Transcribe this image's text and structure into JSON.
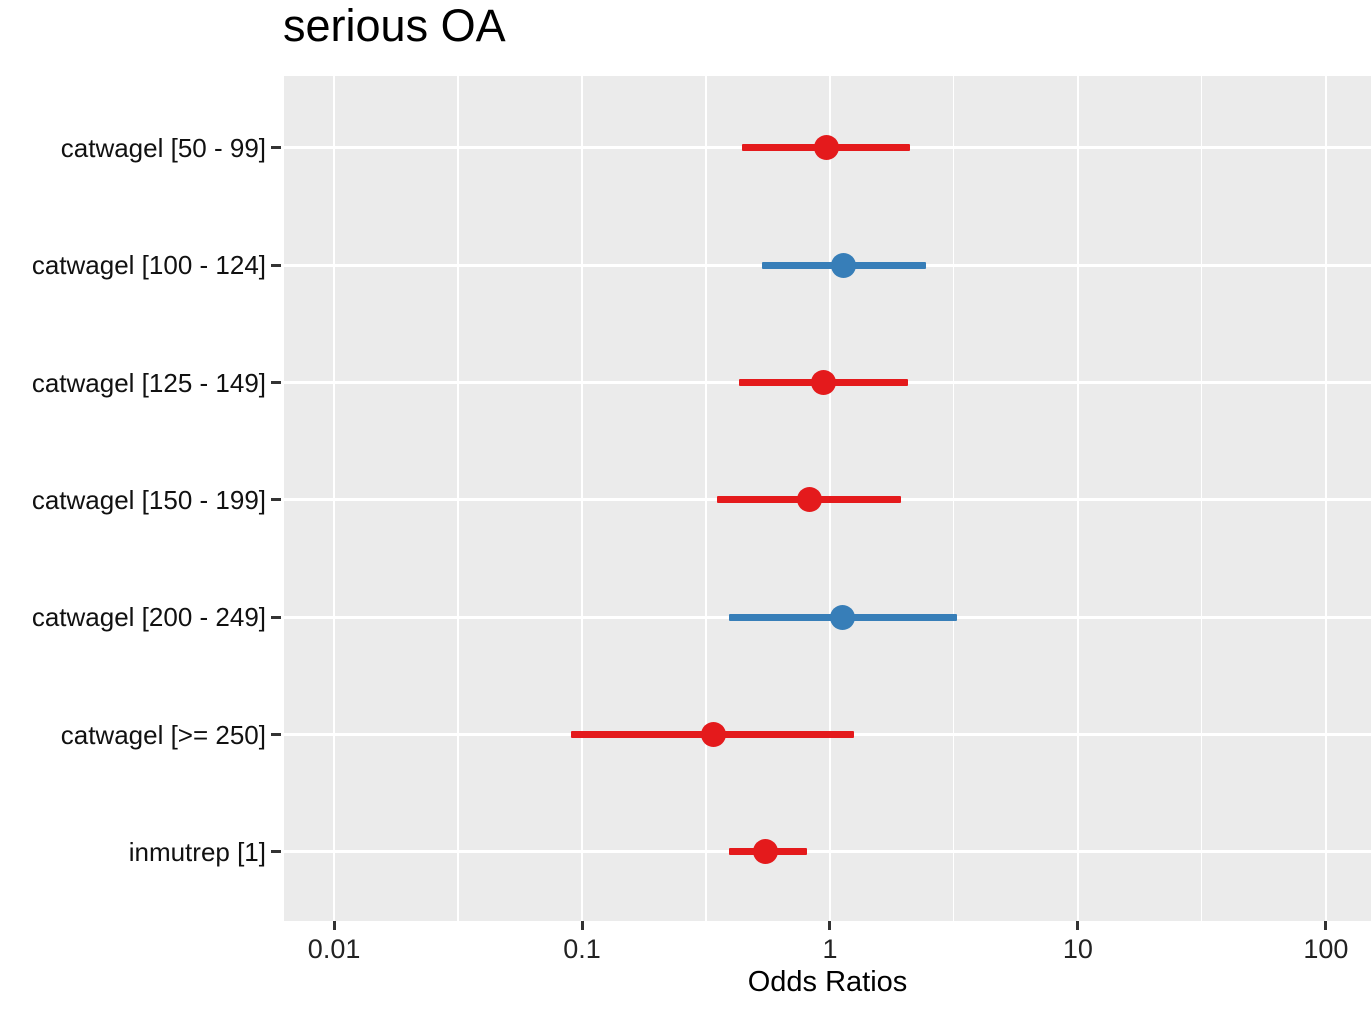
{
  "title": "serious OA",
  "x_axis": {
    "label": "Odds Ratios",
    "scale": "log10",
    "tick_labels": [
      "0.01",
      "0.1",
      "1",
      "10",
      "100"
    ],
    "tick_values": [
      0.01,
      0.1,
      1,
      10,
      100
    ],
    "minor_tick_values": [
      0.0316,
      0.316,
      3.16,
      31.6
    ],
    "log10_domain": [
      -2.202,
      2.182
    ]
  },
  "colors": {
    "or_below_1": "#e41a1c",
    "or_above_1": "#377eb8",
    "panel_background": "#ebebeb",
    "gridline": "#ffffff",
    "tick_mark": "#333333",
    "title_text": "#000000"
  },
  "chart_data": {
    "type": "scatter",
    "subtype": "forest-plot-dot-ci",
    "title": "serious OA",
    "xlabel": "Odds Ratios",
    "x_scale": "log10",
    "xlim": [
      0.0063,
      152
    ],
    "grid": true,
    "legend": null,
    "categories": [
      "catwagel [50 - 99]",
      "catwagel [100 - 124]",
      "catwagel [125 - 149]",
      "catwagel [150 - 199]",
      "catwagel [200 - 249]",
      "catwagel [>= 250]",
      "inmutrep [1]"
    ],
    "points": [
      {
        "label": "catwagel [50 - 99]",
        "odds_ratio": 0.97,
        "ci_low": 0.44,
        "ci_high": 2.1,
        "direction": "below_1"
      },
      {
        "label": "catwagel [100 - 124]",
        "odds_ratio": 1.13,
        "ci_low": 0.53,
        "ci_high": 2.44,
        "direction": "above_1"
      },
      {
        "label": "catwagel [125 - 149]",
        "odds_ratio": 0.94,
        "ci_low": 0.43,
        "ci_high": 2.07,
        "direction": "below_1"
      },
      {
        "label": "catwagel [150 - 199]",
        "odds_ratio": 0.83,
        "ci_low": 0.35,
        "ci_high": 1.93,
        "direction": "below_1"
      },
      {
        "label": "catwagel [200 - 249]",
        "odds_ratio": 1.12,
        "ci_low": 0.39,
        "ci_high": 3.25,
        "direction": "above_1"
      },
      {
        "label": "catwagel [>= 250]",
        "odds_ratio": 0.34,
        "ci_low": 0.09,
        "ci_high": 1.25,
        "direction": "below_1"
      },
      {
        "label": "inmutrep [1]",
        "odds_ratio": 0.55,
        "ci_low": 0.39,
        "ci_high": 0.81,
        "direction": "below_1"
      }
    ]
  }
}
